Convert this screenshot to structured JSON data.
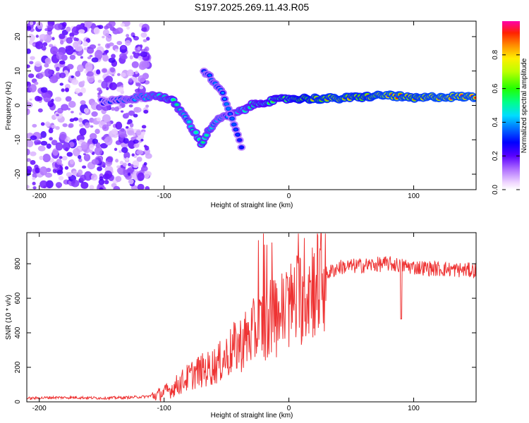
{
  "title": "S197.2025.269.11.43.R05",
  "chart_data": [
    {
      "type": "heatmap",
      "name": "spectrogram",
      "xlabel": "Height of straight line (km)",
      "ylabel": "Frequency (Hz)",
      "xlim": [
        -210,
        150
      ],
      "ylim": [
        -24.5,
        24.5
      ],
      "xticks": [
        -200,
        -100,
        0,
        100
      ],
      "yticks": [
        -20,
        -10,
        0,
        10,
        20
      ],
      "colorbar": {
        "label": "Normalized spectral amplitude",
        "range": [
          0,
          1
        ],
        "ticks": [
          0.0,
          0.2,
          0.4,
          0.6,
          0.8
        ]
      },
      "ridge": [
        {
          "x": -150,
          "y": 1.0,
          "a": 0.3
        },
        {
          "x": -105,
          "y": 3.0,
          "a": 0.5
        },
        {
          "x": -92,
          "y": 1.0,
          "a": 0.55
        },
        {
          "x": -82,
          "y": -4.0,
          "a": 0.45
        },
        {
          "x": -75,
          "y": -8.0,
          "a": 0.5
        },
        {
          "x": -70,
          "y": -11.0,
          "a": 0.55
        },
        {
          "x": -60,
          "y": -5.0,
          "a": 0.45
        },
        {
          "x": -50,
          "y": -3.0,
          "a": 0.4
        },
        {
          "x": -40,
          "y": -2.0,
          "a": 0.5
        },
        {
          "x": -30,
          "y": 0.0,
          "a": 0.55
        },
        {
          "x": -20,
          "y": 1.0,
          "a": 0.6
        },
        {
          "x": 0,
          "y": 2.0,
          "a": 0.7
        },
        {
          "x": 20,
          "y": 2.0,
          "a": 0.85
        },
        {
          "x": 40,
          "y": 2.0,
          "a": 0.9
        },
        {
          "x": 60,
          "y": 2.5,
          "a": 0.85
        },
        {
          "x": 80,
          "y": 3.0,
          "a": 0.95
        },
        {
          "x": 100,
          "y": 2.0,
          "a": 0.9
        },
        {
          "x": 120,
          "y": 2.5,
          "a": 0.95
        },
        {
          "x": 150,
          "y": 2.5,
          "a": 0.95
        }
      ],
      "branch": [
        {
          "x": -68,
          "y": 10.0,
          "a": 0.35
        },
        {
          "x": -55,
          "y": 5.0,
          "a": 0.4
        },
        {
          "x": -45,
          "y": -4.0,
          "a": 0.35
        },
        {
          "x": -38,
          "y": -12.0,
          "a": 0.3
        }
      ]
    },
    {
      "type": "line",
      "name": "snr",
      "xlabel": "Height of straight line (km)",
      "ylabel": "SNR (10 * v/v)",
      "xlim": [
        -210,
        150
      ],
      "ylim": [
        0,
        980
      ],
      "xticks": [
        -200,
        -100,
        0,
        100
      ],
      "yticks": [
        0,
        200,
        400,
        600,
        800
      ],
      "color": "#ee3333",
      "x": [
        -210,
        -190,
        -170,
        -150,
        -130,
        -115,
        -105,
        -95,
        -85,
        -75,
        -65,
        -55,
        -45,
        -35,
        -25,
        -15,
        -5,
        5,
        15,
        25,
        40,
        60,
        80,
        100,
        120,
        150
      ],
      "y": [
        20,
        25,
        25,
        22,
        25,
        30,
        40,
        70,
        120,
        170,
        190,
        230,
        300,
        360,
        420,
        480,
        520,
        580,
        650,
        720,
        780,
        790,
        800,
        780,
        770,
        760
      ]
    }
  ]
}
